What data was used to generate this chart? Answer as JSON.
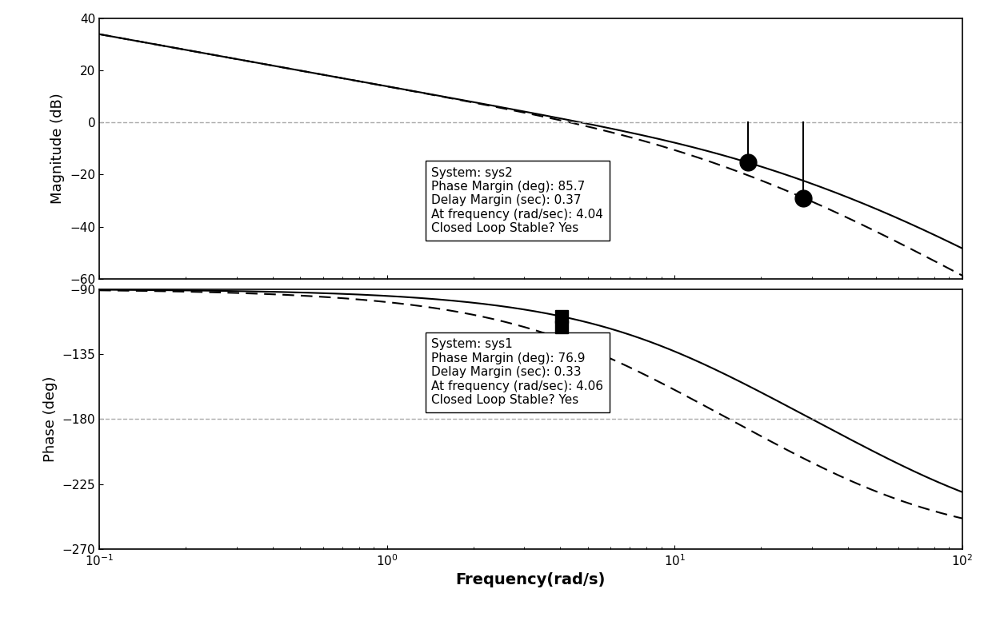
{
  "freq_range": [
    0.1,
    100
  ],
  "mag_ylim": [
    -60,
    40
  ],
  "phase_ylim": [
    -270,
    -90
  ],
  "mag_yticks": [
    -60,
    -40,
    -20,
    0,
    20,
    40
  ],
  "phase_yticks": [
    -270,
    -225,
    -180,
    -135,
    -90
  ],
  "mag_ylabel": "Magnitude (dB)",
  "phase_ylabel": "Phase (deg)",
  "xlabel": "Frequency(rad/s)",
  "mag_annotation_lines": [
    "System: sys2",
    "Phase Margin (deg): 85.7",
    "Delay Margin (sec): 0.37",
    "At frequency (rad/sec): 4.04",
    "Closed Loop Stable? Yes"
  ],
  "phase_annotation_lines": [
    "System: sys1",
    "Phase Margin (deg): 76.9",
    "Delay Margin (sec): 0.33",
    "At frequency (rad/sec): 4.06",
    "Closed Loop Stable? Yes"
  ],
  "sys1_K": 5.0,
  "sys1_poles": [
    15.0,
    60.0
  ],
  "sys2_K": 5.0,
  "sys2_poles": [
    8.0,
    30.0
  ],
  "mag_marker1_freq": 18.0,
  "mag_marker2_freq": 28.0,
  "phase_marker_freq": 4.04,
  "line_color": "#000000",
  "grid_color": "#aaaaaa",
  "bg_color": "#ffffff"
}
